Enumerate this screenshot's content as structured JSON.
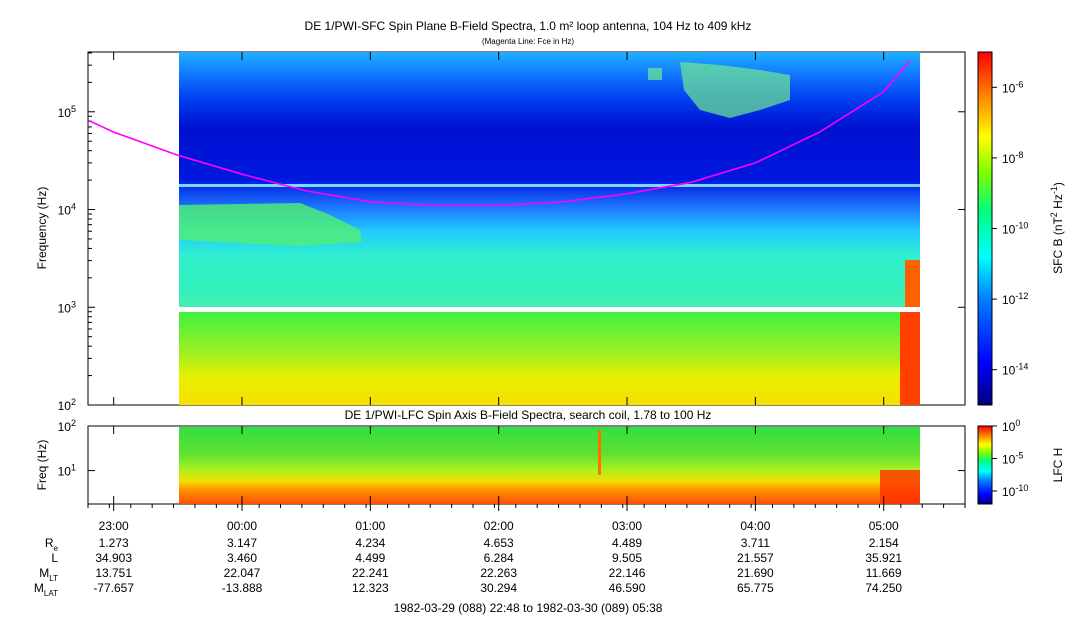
{
  "chart_data": [
    {
      "type": "heatmap",
      "title": "DE 1/PWI-SFC  Spin Plane B-Field Spectra, 1.0 m² loop antenna, 104 Hz to 409 kHz",
      "subtitle": "(Magenta Line: Fce in Hz)",
      "ylabel": "Frequency (Hz)",
      "yscale": "log",
      "ylim": [
        100,
        409000
      ],
      "y_ticks": [
        {
          "value": 100,
          "base": "10",
          "exp": "2"
        },
        {
          "value": 1000,
          "base": "10",
          "exp": "3"
        },
        {
          "value": 10000,
          "base": "10",
          "exp": "4"
        },
        {
          "value": 100000,
          "base": "10",
          "exp": "5"
        }
      ],
      "colorbar": {
        "label_main": "SFC B (nT",
        "label_sup1": "2",
        "label_mid": " Hz",
        "label_sup2": "-1",
        "label_end": ")",
        "scale": "log",
        "range": [
          1e-15,
          1e-05
        ],
        "ticks": [
          {
            "value": 1e-06,
            "base": "10",
            "exp": "-6"
          },
          {
            "value": 1e-08,
            "base": "10",
            "exp": "-8"
          },
          {
            "value": 1e-10,
            "base": "10",
            "exp": "-10"
          },
          {
            "value": 1e-12,
            "base": "10",
            "exp": "-12"
          },
          {
            "value": 1e-14,
            "base": "10",
            "exp": "-14"
          }
        ]
      },
      "series": [
        {
          "name": "Fce in Hz",
          "color": "#ff00ff",
          "x": [
            22.8,
            23.0,
            23.5,
            0.0,
            0.5,
            1.0,
            1.5,
            2.0,
            2.5,
            3.0,
            3.5,
            4.0,
            4.5,
            5.0,
            5.2
          ],
          "y": [
            82000,
            62000,
            36000,
            23000,
            15500,
            12000,
            11000,
            11000,
            12000,
            14500,
            19000,
            30000,
            62000,
            160000,
            330000
          ]
        }
      ],
      "data_gap_x": [
        22.8,
        23.5
      ],
      "colors": [
        "#00007f",
        "#0000ff",
        "#007fff",
        "#00ffff",
        "#00ff7f",
        "#7fff00",
        "#ffff00",
        "#ff7f00",
        "#ff0000"
      ]
    },
    {
      "type": "heatmap",
      "title": "DE 1/PWI-LFC  Spin Axis B-Field Spectra, search coil, 1.78 to 100 Hz",
      "ylabel": "Freq (Hz)",
      "yscale": "log",
      "ylim": [
        1.78,
        100
      ],
      "y_ticks": [
        {
          "value": 10,
          "base": "10",
          "exp": "1"
        },
        {
          "value": 100,
          "base": "10",
          "exp": "2"
        }
      ],
      "colorbar": {
        "label": "LFC H",
        "scale": "log",
        "range": [
          1e-12,
          1
        ],
        "ticks": [
          {
            "value": 1,
            "base": "10",
            "exp": "0"
          },
          {
            "value": 1e-05,
            "base": "10",
            "exp": "-5"
          },
          {
            "value": 1e-10,
            "base": "10",
            "exp": "-10"
          }
        ]
      }
    }
  ],
  "axis": {
    "time_ticks": [
      "23:00",
      "00:00",
      "01:00",
      "02:00",
      "03:00",
      "04:00",
      "05:00"
    ],
    "x_range": [
      "22:48",
      "05:38"
    ]
  },
  "ephemeris": {
    "rows": [
      {
        "label": "R",
        "sub": "e",
        "values": [
          "1.273",
          "3.147",
          "4.234",
          "4.653",
          "4.489",
          "3.711",
          "2.154"
        ]
      },
      {
        "label": "L",
        "sub": "",
        "values": [
          "34.903",
          "3.460",
          "4.499",
          "6.284",
          "9.505",
          "21.557",
          "35.921"
        ]
      },
      {
        "label": "M",
        "sub": "LT",
        "values": [
          "13.751",
          "22.047",
          "22.241",
          "22.263",
          "22.146",
          "21.690",
          "11.669"
        ]
      },
      {
        "label": "M",
        "sub": "LAT",
        "values": [
          "-77.657",
          "-13.888",
          "12.323",
          "30.294",
          "46.590",
          "65.775",
          "74.250"
        ]
      }
    ],
    "time_range": "1982-03-29 (088) 22:48 to 1982-03-30 (089) 05:38"
  }
}
